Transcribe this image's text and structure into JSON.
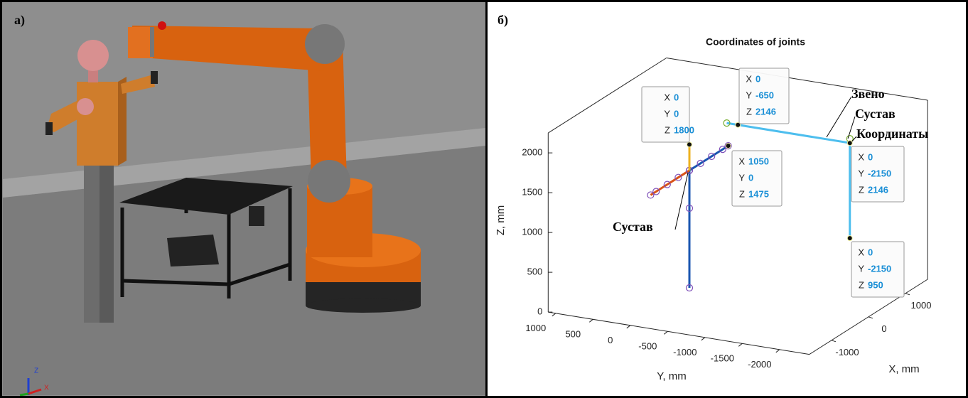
{
  "panels": {
    "left_label": "а)",
    "right_label": "б)",
    "triad": [
      "Z",
      "X"
    ]
  },
  "chart_data": {
    "type": "line3d",
    "title": "Coordinates of joints",
    "xlabel": "X, mm",
    "ylabel": "Y, mm",
    "zlabel": "Z, mm",
    "xlim": [
      -1600,
      1600
    ],
    "ylim": [
      -2400,
      1100
    ],
    "zlim": [
      0,
      2250
    ],
    "xticks": [
      -1000,
      0,
      1000
    ],
    "yticks": [
      -2000,
      -1500,
      -1000,
      -500,
      0,
      500,
      1000
    ],
    "zticks": [
      0,
      500,
      1000,
      1500,
      2000
    ],
    "grid": false,
    "series": [
      {
        "color": "#1a56b0",
        "marker": "circle",
        "marker_color": "#7e4fb8",
        "x": [
          0,
          0,
          0
        ],
        "y": [
          0,
          0,
          0
        ],
        "z": [
          0,
          1000,
          1475
        ]
      },
      {
        "color": "#d95319",
        "marker": "circle",
        "marker_color": "#7e4fb8",
        "x": [
          -1050,
          -900,
          -600,
          -300,
          0
        ],
        "y": [
          0,
          0,
          0,
          0,
          0
        ],
        "z": [
          1475,
          1475,
          1475,
          1475,
          1475
        ]
      },
      {
        "color": "#1a56b0",
        "marker": "circle",
        "marker_color": "#7e4fb8",
        "x": [
          0,
          300,
          600,
          900,
          1050
        ],
        "y": [
          0,
          0,
          0,
          0,
          0
        ],
        "z": [
          1475,
          1475,
          1475,
          1475,
          1475
        ]
      },
      {
        "color": "#edb120",
        "x": [
          0,
          0
        ],
        "y": [
          0,
          0
        ],
        "z": [
          1475,
          1800
        ]
      },
      {
        "color": "#4dbeee",
        "x": [
          0,
          0,
          0
        ],
        "y": [
          -500,
          -2150,
          -2150
        ],
        "z": [
          2146,
          2146,
          950
        ]
      },
      {
        "color": "#77ac30",
        "line": false,
        "marker": "circle",
        "marker_color": "#77ac30",
        "x": [
          0,
          0
        ],
        "y": [
          -500,
          -2150
        ],
        "z": [
          2146,
          2200
        ]
      }
    ],
    "datatip_labels": [
      "X",
      "Y",
      "Z"
    ],
    "datatips": [
      {
        "x": 0,
        "y": 0,
        "z": 1800
      },
      {
        "x": 1050,
        "y": 0,
        "z": 1475
      },
      {
        "x": 0,
        "y": -650,
        "z": 2146
      },
      {
        "x": 0,
        "y": -2150,
        "z": 2146
      },
      {
        "x": 0,
        "y": -2150,
        "z": 950
      }
    ],
    "annotations": [
      "Звено",
      "Сустав",
      "Координаты",
      "Сустав"
    ]
  }
}
